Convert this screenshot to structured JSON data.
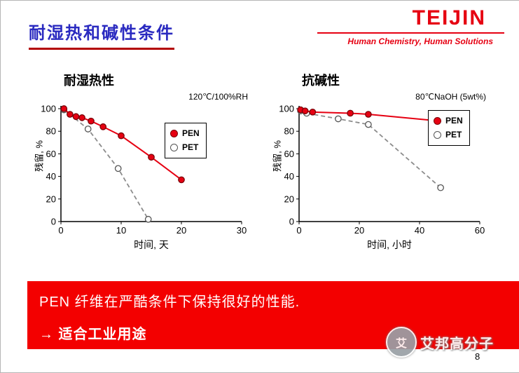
{
  "header": {
    "title": "耐湿热和碱性条件",
    "logo": "TEIJIN",
    "tagline": "Human Chemistry, Human Solutions"
  },
  "colors": {
    "teijin_red": "#e60012",
    "title_blue": "#2a2ac0",
    "banner_red": "#f30000",
    "pen_red": "#e60012",
    "pet_gray": "#8c8c8c"
  },
  "chart_data": [
    {
      "type": "line",
      "title": "耐湿热性",
      "condition": "120℃/100%RH",
      "xlabel": "时间, 天",
      "ylabel": "残留, %",
      "xlim": [
        0,
        30
      ],
      "ylim": [
        0,
        100
      ],
      "xticks": [
        0,
        10,
        20,
        30
      ],
      "yticks": [
        0,
        20,
        40,
        60,
        80,
        100
      ],
      "grid": false,
      "legend_position": "inside-right",
      "series": [
        {
          "name": "PEN",
          "color": "#e60012",
          "marker": "filled",
          "line": "solid",
          "x": [
            0.5,
            1.5,
            2.5,
            3.5,
            5,
            7,
            10,
            15,
            20
          ],
          "y": [
            100,
            95,
            93,
            92,
            89,
            84,
            76,
            57,
            37
          ]
        },
        {
          "name": "PET",
          "color": "#8c8c8c",
          "marker": "open",
          "line": "dashed",
          "x": [
            0.5,
            4.5,
            9.5,
            14.5
          ],
          "y": [
            99,
            82,
            47,
            2
          ]
        }
      ]
    },
    {
      "type": "line",
      "title": "抗碱性",
      "condition": "80℃NaOH (5wt%)",
      "xlabel": "时间, 小时",
      "ylabel": "残留, %",
      "xlim": [
        0,
        60
      ],
      "ylim": [
        0,
        100
      ],
      "xticks": [
        0,
        20,
        40,
        60
      ],
      "yticks": [
        0,
        20,
        40,
        60,
        80,
        100
      ],
      "grid": false,
      "legend_position": "inside-right",
      "series": [
        {
          "name": "PEN",
          "color": "#e60012",
          "marker": "filled",
          "line": "solid",
          "x": [
            0.5,
            2,
            4.5,
            17,
            23,
            47
          ],
          "y": [
            99,
            98,
            97,
            96,
            95,
            89
          ]
        },
        {
          "name": "PET",
          "color": "#8c8c8c",
          "marker": "open",
          "line": "dashed",
          "x": [
            0.5,
            2.5,
            13,
            23,
            47
          ],
          "y": [
            98,
            96,
            91,
            86,
            30
          ]
        }
      ]
    }
  ],
  "banner": {
    "line1": "PEN 纤维在严酷条件下保持很好的性能.",
    "line2": "→ 适合工业用途"
  },
  "watermark": {
    "icon_text": "艾",
    "label": "艾邦高分子"
  },
  "page_number": "8"
}
